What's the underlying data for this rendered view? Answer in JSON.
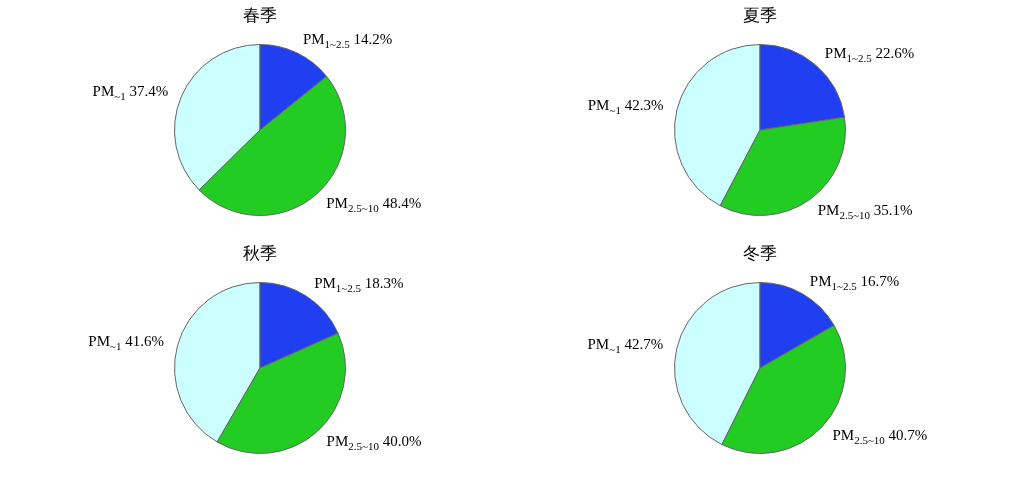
{
  "chart_data": [
    {
      "type": "pie",
      "title": "春季",
      "categories": [
        "PM$_{~1}$",
        "PM$_{1~2.5}$",
        "PM$_{2.5~10}$"
      ],
      "values": [
        37.4,
        14.2,
        48.4
      ],
      "value_labels": [
        "37.4%",
        "14.2%",
        "48.4%"
      ],
      "colors": [
        "#ccffff",
        "#1f3ff0",
        "#22cc22"
      ]
    },
    {
      "type": "pie",
      "title": "夏季",
      "categories": [
        "PM$_{~1}$",
        "PM$_{1~2.5}$",
        "PM$_{2.5~10}$"
      ],
      "values": [
        42.3,
        22.6,
        35.1
      ],
      "value_labels": [
        "42.3%",
        "22.6%",
        "35.1%"
      ],
      "colors": [
        "#ccffff",
        "#1f3ff0",
        "#22cc22"
      ]
    },
    {
      "type": "pie",
      "title": "秋季",
      "categories": [
        "PM$_{~1}$",
        "PM$_{1~2.5}$",
        "PM$_{2.5~10}$"
      ],
      "values": [
        41.6,
        18.3,
        40.0
      ],
      "value_labels": [
        "41.6%",
        "18.3%",
        "40.0%"
      ],
      "colors": [
        "#ccffff",
        "#1f3ff0",
        "#22cc22"
      ]
    },
    {
      "type": "pie",
      "title": "冬季",
      "categories": [
        "PM$_{~1}$",
        "PM$_{1~2.5}$",
        "PM$_{2.5~10}$"
      ],
      "values": [
        42.7,
        16.7,
        40.7
      ],
      "value_labels": [
        "42.7%",
        "16.7%",
        "40.7%"
      ],
      "colors": [
        "#ccffff",
        "#1f3ff0",
        "#22cc22"
      ]
    }
  ]
}
